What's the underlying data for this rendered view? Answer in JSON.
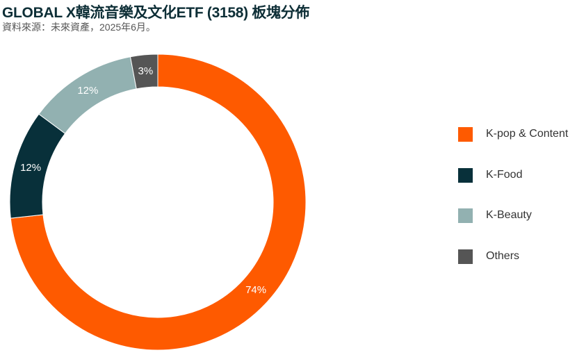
{
  "header": {
    "title": "GLOBAL X韓流音樂及文化ETF (3158) 板塊分佈",
    "subtitle": "資料來源：未來資產，2025年6月。"
  },
  "chart_data": {
    "type": "pie",
    "title": "GLOBAL X韓流音樂及文化ETF (3158) 板塊分佈",
    "subtitle": "資料來源：未來資產，2025年6月。",
    "categories": [
      "K-pop & Content",
      "K-Food",
      "K-Beauty",
      "Others"
    ],
    "values": [
      74,
      12,
      12,
      3
    ],
    "data_labels": [
      "74%",
      "12%",
      "12%",
      "3%"
    ],
    "colors": [
      "#fe5a00",
      "#08303a",
      "#92b1b1",
      "#555555"
    ],
    "label_colors": [
      "#ffffff",
      "#ffffff",
      "#ffffff",
      "#ffffff"
    ],
    "donut": true,
    "start": "top",
    "direction": "clockwise",
    "legend_position": "right"
  }
}
